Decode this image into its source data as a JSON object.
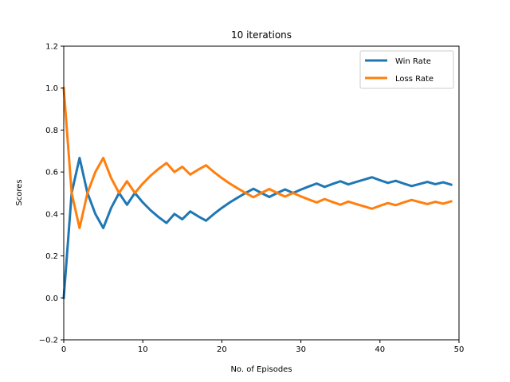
{
  "chart_data": {
    "type": "line",
    "title": "10 iterations",
    "xlabel": "No. of Episodes",
    "ylabel": "Scores",
    "xlim": [
      0,
      50
    ],
    "ylim": [
      -0.2,
      1.2
    ],
    "xticks": [
      "0",
      "10",
      "20",
      "30",
      "40",
      "50"
    ],
    "yticks": [
      "−0.2",
      "0.0",
      "0.2",
      "0.4",
      "0.6",
      "0.8",
      "1.0",
      "1.2"
    ],
    "grid": false,
    "legend_position": "top-right",
    "x": [
      0,
      1,
      2,
      3,
      4,
      5,
      6,
      7,
      8,
      9,
      10,
      11,
      12,
      13,
      14,
      15,
      16,
      17,
      18,
      19,
      20,
      21,
      22,
      23,
      24,
      25,
      26,
      27,
      28,
      29,
      30,
      31,
      32,
      33,
      34,
      35,
      36,
      37,
      38,
      39,
      40,
      41,
      42,
      43,
      44,
      45,
      46,
      47,
      48,
      49
    ],
    "series": [
      {
        "name": "Win Rate",
        "color": "#1f77b4",
        "values": [
          0.0,
          0.5,
          0.667,
          0.5,
          0.4,
          0.333,
          0.429,
          0.5,
          0.444,
          0.5,
          0.455,
          0.417,
          0.385,
          0.357,
          0.4,
          0.375,
          0.412,
          0.389,
          0.368,
          0.4,
          0.429,
          0.455,
          0.478,
          0.5,
          0.52,
          0.5,
          0.481,
          0.5,
          0.517,
          0.5,
          0.516,
          0.531,
          0.545,
          0.529,
          0.543,
          0.556,
          0.541,
          0.553,
          0.564,
          0.575,
          0.561,
          0.548,
          0.558,
          0.545,
          0.533,
          0.543,
          0.553,
          0.542,
          0.551,
          0.54
        ]
      },
      {
        "name": "Loss Rate",
        "color": "#ff7f0e",
        "values": [
          1.0,
          0.5,
          0.333,
          0.5,
          0.6,
          0.667,
          0.571,
          0.5,
          0.556,
          0.5,
          0.545,
          0.583,
          0.615,
          0.643,
          0.6,
          0.625,
          0.588,
          0.611,
          0.632,
          0.6,
          0.571,
          0.545,
          0.522,
          0.5,
          0.48,
          0.5,
          0.519,
          0.5,
          0.483,
          0.5,
          0.484,
          0.469,
          0.455,
          0.471,
          0.457,
          0.444,
          0.459,
          0.447,
          0.436,
          0.425,
          0.439,
          0.452,
          0.442,
          0.455,
          0.467,
          0.457,
          0.447,
          0.458,
          0.449,
          0.46
        ]
      }
    ]
  }
}
